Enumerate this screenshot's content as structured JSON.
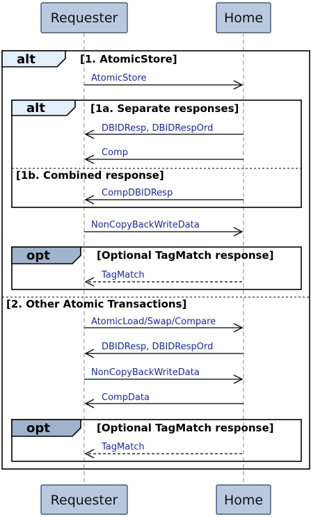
{
  "participants": {
    "requester": "Requester",
    "home": "Home"
  },
  "frames": {
    "outer_alt": {
      "keyword": "alt",
      "guard1": "[1. AtomicStore]",
      "guard2": "[2. Other Atomic Transactions]"
    },
    "inner_alt": {
      "keyword": "alt",
      "guard1": "[1a. Separate responses]",
      "guard2": "[1b. Combined response]"
    },
    "opt1": {
      "keyword": "opt",
      "guard": "[Optional TagMatch response]"
    },
    "opt2": {
      "keyword": "opt",
      "guard": "[Optional TagMatch response]"
    }
  },
  "messages": [
    {
      "label": "AtomicStore",
      "from": "requester",
      "to": "home",
      "style": "solid"
    },
    {
      "label": "DBIDResp, DBIDRespOrd",
      "from": "home",
      "to": "requester",
      "style": "solid"
    },
    {
      "label": "Comp",
      "from": "home",
      "to": "requester",
      "style": "solid"
    },
    {
      "label": "CompDBIDResp",
      "from": "home",
      "to": "requester",
      "style": "solid"
    },
    {
      "label": "NonCopyBackWriteData",
      "from": "requester",
      "to": "home",
      "style": "solid"
    },
    {
      "label": "TagMatch",
      "from": "home",
      "to": "requester",
      "style": "dashed"
    },
    {
      "label": "AtomicLoad/Swap/Compare",
      "from": "requester",
      "to": "home",
      "style": "solid"
    },
    {
      "label": "DBIDResp, DBIDRespOrd",
      "from": "home",
      "to": "requester",
      "style": "solid"
    },
    {
      "label": "NonCopyBackWriteData",
      "from": "requester",
      "to": "home",
      "style": "solid"
    },
    {
      "label": "CompData",
      "from": "home",
      "to": "requester",
      "style": "solid"
    },
    {
      "label": "TagMatch",
      "from": "home",
      "to": "requester",
      "style": "dashed"
    }
  ]
}
